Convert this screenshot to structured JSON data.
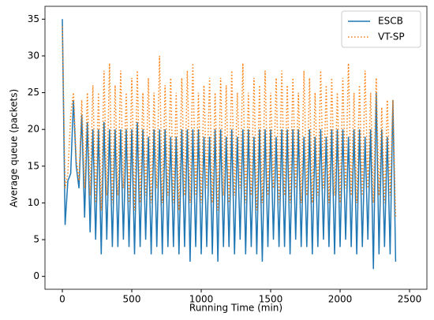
{
  "chart_data": {
    "type": "line",
    "xlabel": "Running Time (min)",
    "ylabel": "Average queue (packets)",
    "x": [
      0,
      20,
      40,
      60,
      80,
      100,
      120,
      140,
      160,
      180,
      200,
      220,
      240,
      260,
      280,
      300,
      320,
      340,
      360,
      380,
      400,
      420,
      440,
      460,
      480,
      500,
      520,
      540,
      560,
      580,
      600,
      620,
      640,
      660,
      680,
      700,
      720,
      740,
      760,
      780,
      800,
      820,
      840,
      860,
      880,
      900,
      920,
      940,
      960,
      980,
      1000,
      1020,
      1040,
      1060,
      1080,
      1100,
      1120,
      1140,
      1160,
      1180,
      1200,
      1220,
      1240,
      1260,
      1280,
      1300,
      1320,
      1340,
      1360,
      1380,
      1400,
      1420,
      1440,
      1460,
      1480,
      1500,
      1520,
      1540,
      1560,
      1580,
      1600,
      1620,
      1640,
      1660,
      1680,
      1700,
      1720,
      1740,
      1760,
      1780,
      1800,
      1820,
      1840,
      1860,
      1880,
      1900,
      1920,
      1940,
      1960,
      1980,
      2000,
      2020,
      2040,
      2060,
      2080,
      2100,
      2120,
      2140,
      2160,
      2180,
      2200,
      2220,
      2240,
      2260,
      2280,
      2300,
      2320,
      2340,
      2360,
      2380,
      2400
    ],
    "series": [
      {
        "name": "ESCB",
        "color": "#1f77b4",
        "dash": "solid",
        "values": [
          35,
          7,
          13,
          14,
          24,
          15,
          12,
          22,
          8,
          21,
          6,
          20,
          5,
          20,
          3,
          21,
          5,
          20,
          4,
          20,
          4,
          20,
          5,
          20,
          4,
          20,
          3,
          21,
          4,
          20,
          5,
          19,
          3,
          20,
          4,
          20,
          3,
          20,
          4,
          19,
          4,
          19,
          3,
          20,
          4,
          20,
          2,
          20,
          4,
          20,
          3,
          19,
          4,
          19,
          3,
          20,
          2,
          20,
          4,
          19,
          4,
          20,
          3,
          19,
          5,
          20,
          3,
          20,
          4,
          19,
          3,
          20,
          2,
          20,
          4,
          20,
          5,
          19,
          4,
          20,
          4,
          20,
          3,
          20,
          5,
          20,
          4,
          19,
          4,
          20,
          3,
          19,
          4,
          20,
          5,
          19,
          4,
          20,
          3,
          20,
          4,
          20,
          5,
          19,
          4,
          20,
          3,
          20,
          4,
          19,
          5,
          20,
          1,
          25,
          3,
          20,
          4,
          19,
          3,
          24,
          2
        ]
      },
      {
        "name": "VT-SP",
        "color": "#ff7f0e",
        "dash": "dotted",
        "values": [
          34,
          12,
          14,
          22,
          25,
          16,
          13,
          24,
          12,
          25,
          11,
          26,
          10,
          25,
          9,
          28,
          11,
          29,
          10,
          26,
          11,
          28,
          12,
          25,
          10,
          27,
          9,
          28,
          10,
          25,
          11,
          27,
          10,
          25,
          12,
          30,
          10,
          26,
          11,
          27,
          10,
          25,
          9,
          27,
          11,
          28,
          10,
          29,
          11,
          25,
          10,
          26,
          12,
          27,
          10,
          25,
          9,
          27,
          11,
          26,
          10,
          28,
          11,
          25,
          12,
          29,
          10,
          25,
          11,
          27,
          9,
          26,
          10,
          28,
          11,
          25,
          12,
          27,
          10,
          28,
          11,
          26,
          10,
          27,
          12,
          25,
          10,
          28,
          11,
          27,
          10,
          25,
          11,
          28,
          12,
          26,
          10,
          27,
          11,
          25,
          10,
          27,
          12,
          29,
          11,
          25,
          10,
          26,
          11,
          28,
          12,
          25,
          10,
          27,
          11,
          23,
          10,
          24,
          11,
          24,
          8
        ]
      }
    ],
    "xlim": [
      -125,
      2625
    ],
    "ylim": [
      -1.75,
      36.75
    ],
    "xticks": [
      0,
      500,
      1000,
      1500,
      2000,
      2500
    ],
    "yticks": [
      0,
      5,
      10,
      15,
      20,
      25,
      30,
      35
    ],
    "legend": "upper right"
  }
}
